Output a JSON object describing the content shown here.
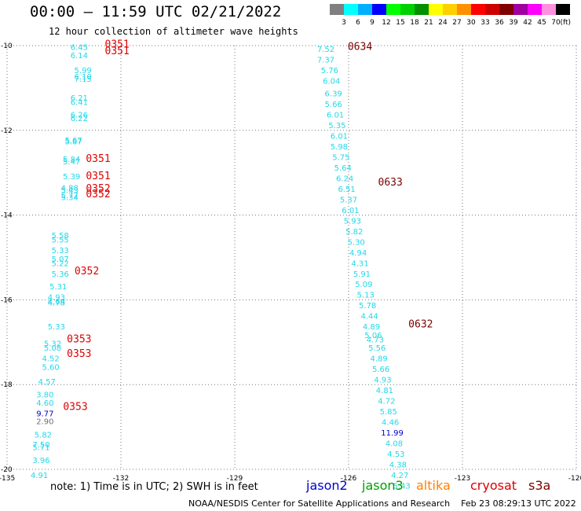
{
  "title": "00:00 — 11:59 UTC 02/21/2022",
  "subtitle": "12 hour collection of altimeter wave heights",
  "note": "note: 1) Time is in UTC; 2) SWH is in feet",
  "credit": "NOAA/NESDIS Center for Satellite Applications and Research    Feb 23 08:29:13 UTC 2022",
  "satellites": [
    {
      "name": "jason2",
      "color": "#0000cc"
    },
    {
      "name": "jason3",
      "color": "#00a000"
    },
    {
      "name": "altika",
      "color": "#ff8000"
    },
    {
      "name": "cryosat",
      "color": "#dd0000"
    },
    {
      "name": "s3a",
      "color": "#7a0000"
    }
  ],
  "colorbar": {
    "unit": "(ft)",
    "labels": [
      "3",
      "6",
      "9",
      "12",
      "15",
      "18",
      "21",
      "24",
      "27",
      "30",
      "33",
      "36",
      "39",
      "42",
      "45",
      "70"
    ],
    "colors": [
      "#808080",
      "#00ffff",
      "#00b0ff",
      "#0000ff",
      "#00ff00",
      "#00d000",
      "#009000",
      "#ffff00",
      "#ffd000",
      "#ff9000",
      "#ff0000",
      "#cc0000",
      "#800000",
      "#a000a0",
      "#ff00ff",
      "#ff90e0",
      "#000000"
    ]
  },
  "chart_data": {
    "type": "scatter",
    "xlim": [
      -135,
      -120
    ],
    "ylim": [
      -20,
      -10
    ],
    "x_ticks": [
      -135,
      -132,
      -129,
      -126,
      -123,
      -120
    ],
    "y_ticks": [
      -10,
      -12,
      -14,
      -16,
      -18,
      -20
    ],
    "x_tick_labels": [
      "-135",
      "-132",
      "-129",
      "-126",
      "-123",
      "-120"
    ],
    "y_tick_labels": [
      "-10",
      "-12",
      "-14",
      "-16",
      "-18",
      "-20"
    ],
    "grid": true,
    "series": [
      {
        "name": "cryosat",
        "color": "#22d8e8",
        "points": [
          {
            "lon": -133.1,
            "lat": -10.1,
            "swh": "6.45"
          },
          {
            "lon": -133.1,
            "lat": -10.3,
            "swh": "6.14"
          },
          {
            "lon": -133.0,
            "lat": -10.65,
            "swh": "5.99"
          },
          {
            "lon": -133.0,
            "lat": -10.8,
            "swh": "6.10"
          },
          {
            "lon": -133.0,
            "lat": -10.85,
            "swh": "7.15"
          },
          {
            "lon": -133.1,
            "lat": -11.3,
            "swh": "6.21"
          },
          {
            "lon": -133.1,
            "lat": -11.4,
            "swh": "6.41"
          },
          {
            "lon": -133.1,
            "lat": -11.7,
            "swh": "6.26"
          },
          {
            "lon": -133.1,
            "lat": -11.78,
            "swh": "6.22"
          },
          {
            "lon": -133.25,
            "lat": -12.3,
            "swh": "5.67"
          },
          {
            "lon": -133.25,
            "lat": -12.33,
            "swh": "5.87"
          },
          {
            "lon": -133.3,
            "lat": -12.75,
            "swh": "5.84"
          },
          {
            "lon": -133.3,
            "lat": -12.8,
            "swh": "5.47"
          },
          {
            "lon": -133.3,
            "lat": -13.15,
            "swh": "5.39"
          },
          {
            "lon": -133.35,
            "lat": -13.42,
            "swh": "4.88"
          },
          {
            "lon": -133.35,
            "lat": -13.48,
            "swh": "5.43"
          },
          {
            "lon": -133.35,
            "lat": -13.6,
            "swh": "5.77"
          },
          {
            "lon": -133.35,
            "lat": -13.65,
            "swh": "5.34"
          },
          {
            "lon": -133.6,
            "lat": -14.55,
            "swh": "5.58"
          },
          {
            "lon": -133.6,
            "lat": -14.65,
            "swh": "5.55"
          },
          {
            "lon": -133.6,
            "lat": -14.9,
            "swh": "5.33"
          },
          {
            "lon": -133.6,
            "lat": -15.1,
            "swh": "5.07"
          },
          {
            "lon": -133.6,
            "lat": -15.2,
            "swh": "5.22"
          },
          {
            "lon": -133.6,
            "lat": -15.45,
            "swh": "5.36"
          },
          {
            "lon": -133.65,
            "lat": -15.75,
            "swh": "5.31"
          },
          {
            "lon": -133.7,
            "lat": -16.0,
            "swh": "4.93"
          },
          {
            "lon": -133.7,
            "lat": -16.1,
            "swh": "4.64"
          },
          {
            "lon": -133.7,
            "lat": -16.13,
            "swh": "4.78"
          },
          {
            "lon": -133.7,
            "lat": -16.7,
            "swh": "5.33"
          },
          {
            "lon": -133.8,
            "lat": -17.1,
            "swh": "5.32"
          },
          {
            "lon": -133.8,
            "lat": -17.2,
            "swh": "5.08"
          },
          {
            "lon": -133.85,
            "lat": -17.45,
            "swh": "4.52"
          },
          {
            "lon": -133.85,
            "lat": -17.65,
            "swh": "5.60"
          },
          {
            "lon": -133.95,
            "lat": -18.0,
            "swh": "4.57"
          },
          {
            "lon": -134.0,
            "lat": -18.3,
            "swh": "3.80"
          },
          {
            "lon": -134.0,
            "lat": -18.5,
            "swh": "4.60"
          },
          {
            "lon": -134.0,
            "lat": -18.75,
            "swh": "9.77"
          },
          {
            "lon": -134.0,
            "lat": -18.93,
            "swh": "2.90"
          },
          {
            "lon": -134.05,
            "lat": -19.25,
            "swh": "5.82"
          },
          {
            "lon": -134.1,
            "lat": -19.48,
            "swh": "7.50"
          },
          {
            "lon": -134.1,
            "lat": -19.55,
            "swh": "5.71"
          },
          {
            "lon": -134.1,
            "lat": -19.85,
            "swh": "3.96"
          },
          {
            "lon": -134.15,
            "lat": -20.2,
            "swh": "4.91"
          }
        ]
      },
      {
        "name": "s3a",
        "color": "#22d8e8",
        "points": [
          {
            "lon": -126.6,
            "lat": -10.15,
            "swh": "7.52"
          },
          {
            "lon": -126.6,
            "lat": -10.4,
            "swh": "7.37"
          },
          {
            "lon": -126.5,
            "lat": -10.65,
            "swh": "5.76"
          },
          {
            "lon": -126.45,
            "lat": -10.9,
            "swh": "6.04"
          },
          {
            "lon": -126.4,
            "lat": -11.2,
            "swh": "6.39"
          },
          {
            "lon": -126.4,
            "lat": -11.45,
            "swh": "5.66"
          },
          {
            "lon": -126.35,
            "lat": -11.7,
            "swh": "6.01"
          },
          {
            "lon": -126.3,
            "lat": -11.95,
            "swh": "5.35"
          },
          {
            "lon": -126.25,
            "lat": -12.2,
            "swh": "6.01"
          },
          {
            "lon": -126.25,
            "lat": -12.45,
            "swh": "5.98"
          },
          {
            "lon": -126.2,
            "lat": -12.7,
            "swh": "5.75"
          },
          {
            "lon": -126.15,
            "lat": -12.95,
            "swh": "5.64"
          },
          {
            "lon": -126.1,
            "lat": -13.2,
            "swh": "6.24"
          },
          {
            "lon": -126.05,
            "lat": -13.45,
            "swh": "6.51"
          },
          {
            "lon": -126.0,
            "lat": -13.7,
            "swh": "5.37"
          },
          {
            "lon": -125.95,
            "lat": -13.95,
            "swh": "6.01"
          },
          {
            "lon": -125.9,
            "lat": -14.2,
            "swh": "5.93"
          },
          {
            "lon": -125.85,
            "lat": -14.45,
            "swh": "5.82"
          },
          {
            "lon": -125.8,
            "lat": -14.7,
            "swh": "5.30"
          },
          {
            "lon": -125.75,
            "lat": -14.95,
            "swh": "4.94"
          },
          {
            "lon": -125.7,
            "lat": -15.2,
            "swh": "4.31"
          },
          {
            "lon": -125.65,
            "lat": -15.45,
            "swh": "5.91"
          },
          {
            "lon": -125.6,
            "lat": -15.7,
            "swh": "5.09"
          },
          {
            "lon": -125.55,
            "lat": -15.95,
            "swh": "5.13"
          },
          {
            "lon": -125.5,
            "lat": -16.2,
            "swh": "5.78"
          },
          {
            "lon": -125.45,
            "lat": -16.45,
            "swh": "4.44"
          },
          {
            "lon": -125.4,
            "lat": -16.7,
            "swh": "4.89"
          },
          {
            "lon": -125.35,
            "lat": -16.9,
            "swh": "5.06"
          },
          {
            "lon": -125.3,
            "lat": -17.0,
            "swh": "4.73"
          },
          {
            "lon": -125.25,
            "lat": -17.2,
            "swh": "5.56"
          },
          {
            "lon": -125.2,
            "lat": -17.45,
            "swh": "4.89"
          },
          {
            "lon": -125.15,
            "lat": -17.7,
            "swh": "5.66"
          },
          {
            "lon": -125.1,
            "lat": -17.95,
            "swh": "4.93"
          },
          {
            "lon": -125.05,
            "lat": -18.2,
            "swh": "4.81"
          },
          {
            "lon": -125.0,
            "lat": -18.45,
            "swh": "4.72"
          },
          {
            "lon": -124.95,
            "lat": -18.7,
            "swh": "5.85"
          },
          {
            "lon": -124.9,
            "lat": -18.95,
            "swh": "4.46"
          },
          {
            "lon": -124.85,
            "lat": -19.2,
            "swh": "11.99"
          },
          {
            "lon": -124.8,
            "lat": -19.45,
            "swh": "4.08"
          },
          {
            "lon": -124.75,
            "lat": -19.7,
            "swh": "4.53"
          },
          {
            "lon": -124.7,
            "lat": -19.95,
            "swh": "4.38"
          },
          {
            "lon": -124.65,
            "lat": -20.2,
            "swh": "4.27"
          },
          {
            "lon": -124.6,
            "lat": -20.45,
            "swh": "5.43"
          }
        ]
      }
    ],
    "time_labels": [
      {
        "lon": -132.1,
        "lat": -10.05,
        "text": "0351",
        "color": "#dd0000"
      },
      {
        "lon": -132.1,
        "lat": -10.2,
        "text": "0351",
        "color": "#dd0000"
      },
      {
        "lon": -132.6,
        "lat": -12.75,
        "text": "0351",
        "color": "#dd0000"
      },
      {
        "lon": -132.6,
        "lat": -13.15,
        "text": "0351",
        "color": "#dd0000"
      },
      {
        "lon": -132.6,
        "lat": -13.45,
        "text": "0352",
        "color": "#dd0000"
      },
      {
        "lon": -132.6,
        "lat": -13.58,
        "text": "0352",
        "color": "#dd0000"
      },
      {
        "lon": -132.9,
        "lat": -15.4,
        "text": "0352",
        "color": "#dd0000"
      },
      {
        "lon": -133.1,
        "lat": -17.0,
        "text": "0353",
        "color": "#dd0000"
      },
      {
        "lon": -133.1,
        "lat": -17.35,
        "text": "0353",
        "color": "#dd0000"
      },
      {
        "lon": -133.2,
        "lat": -18.6,
        "text": "0353",
        "color": "#dd0000"
      },
      {
        "lon": -125.7,
        "lat": -10.1,
        "text": "0634",
        "color": "#7a0000"
      },
      {
        "lon": -124.9,
        "lat": -13.3,
        "text": "0633",
        "color": "#7a0000"
      },
      {
        "lon": -124.1,
        "lat": -16.65,
        "text": "0632",
        "color": "#7a0000"
      }
    ]
  }
}
